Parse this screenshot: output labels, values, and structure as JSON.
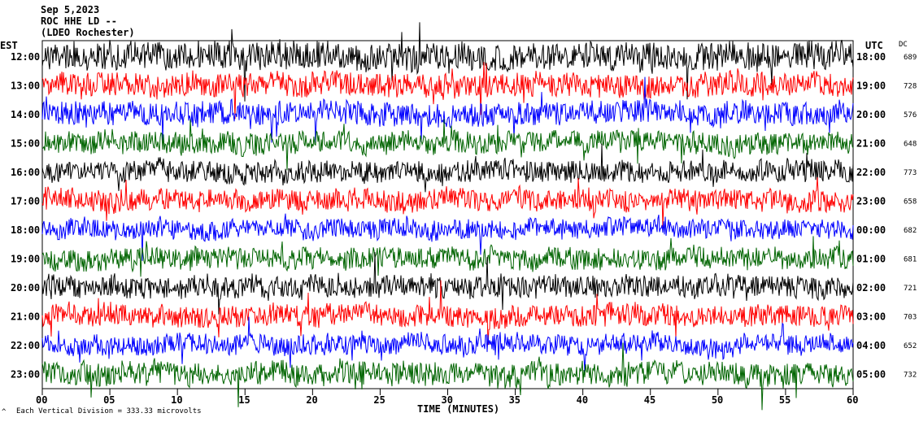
{
  "header": {
    "date": "Sep 5,2023",
    "station": "ROC HHE LD --",
    "location": "(LDEO Rochester)"
  },
  "left_axis_label": "EST",
  "right_axis_label": "UTC",
  "dc_label": "DC",
  "xlabel": "TIME (MINUTES)",
  "scale_note": "Each Vertical Division =  333.33 microvolts",
  "colors": {
    "trace_cycle": [
      "#000000",
      "#ff0000",
      "#0000ff",
      "#006400"
    ]
  },
  "chart_data": {
    "type": "line",
    "description_type": "helicorder",
    "x_ticks": [
      "00",
      "05",
      "10",
      "15",
      "20",
      "25",
      "30",
      "35",
      "40",
      "45",
      "50",
      "55",
      "60"
    ],
    "xlim": [
      0,
      60
    ],
    "rows": [
      {
        "est": "12:00",
        "utc": "18:00",
        "dc": "689",
        "color": "#000000",
        "amplitude": 1.4
      },
      {
        "est": "13:00",
        "utc": "19:00",
        "dc": "728",
        "color": "#ff0000",
        "amplitude": 1.2
      },
      {
        "est": "14:00",
        "utc": "20:00",
        "dc": "576",
        "color": "#0000ff",
        "amplitude": 1.2
      },
      {
        "est": "15:00",
        "utc": "21:00",
        "dc": "648",
        "color": "#006400",
        "amplitude": 1.1
      },
      {
        "est": "16:00",
        "utc": "22:00",
        "dc": "773",
        "color": "#000000",
        "amplitude": 1.1
      },
      {
        "est": "17:00",
        "utc": "23:00",
        "dc": "658",
        "color": "#ff0000",
        "amplitude": 1.1
      },
      {
        "est": "18:00",
        "utc": "00:00",
        "dc": "682",
        "color": "#0000ff",
        "amplitude": 1.0
      },
      {
        "est": "19:00",
        "utc": "01:00",
        "dc": "681",
        "color": "#006400",
        "amplitude": 1.1
      },
      {
        "est": "20:00",
        "utc": "02:00",
        "dc": "721",
        "color": "#000000",
        "amplitude": 1.1
      },
      {
        "est": "21:00",
        "utc": "03:00",
        "dc": "703",
        "color": "#ff0000",
        "amplitude": 1.1
      },
      {
        "est": "22:00",
        "utc": "04:00",
        "dc": "652",
        "color": "#0000ff",
        "amplitude": 1.0
      },
      {
        "est": "23:00",
        "utc": "05:00",
        "dc": "732",
        "color": "#006400",
        "amplitude": 1.2
      }
    ]
  }
}
